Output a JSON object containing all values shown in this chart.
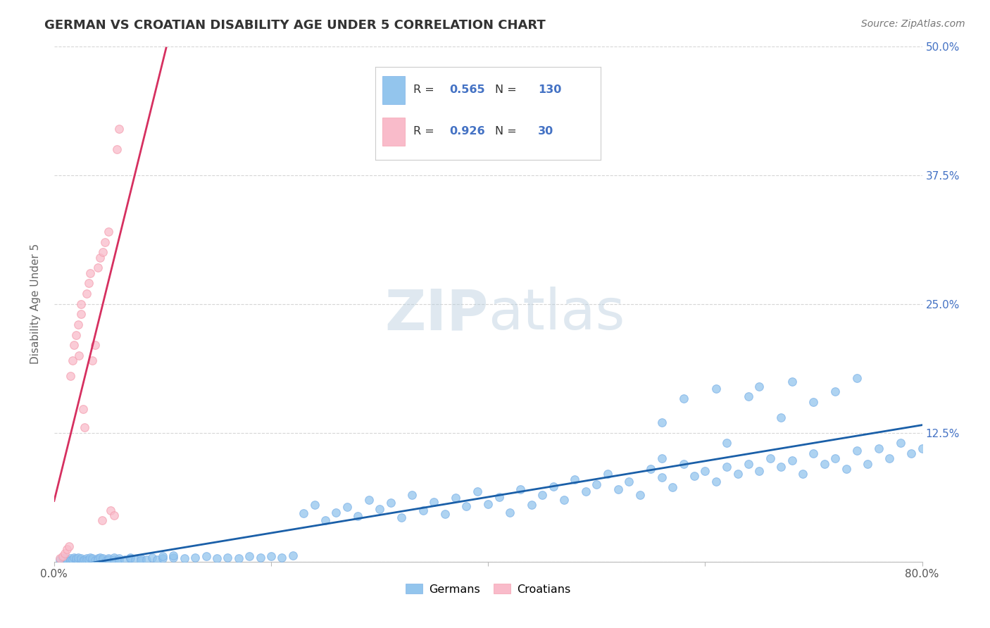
{
  "title": "GERMAN VS CROATIAN DISABILITY AGE UNDER 5 CORRELATION CHART",
  "source": "Source: ZipAtlas.com",
  "ylabel": "Disability Age Under 5",
  "xlim": [
    0.0,
    0.8
  ],
  "ylim": [
    0.0,
    0.5
  ],
  "xticks": [
    0.0,
    0.2,
    0.4,
    0.6,
    0.8
  ],
  "xtick_labels": [
    "0.0%",
    "",
    "",
    "",
    "80.0%"
  ],
  "yticks": [
    0.0,
    0.125,
    0.25,
    0.375,
    0.5
  ],
  "ytick_labels": [
    "",
    "12.5%",
    "25.0%",
    "37.5%",
    "50.0%"
  ],
  "german_color": "#93C5ED",
  "german_edge_color": "#7EB3E8",
  "croatian_color": "#F9BBCA",
  "croatian_edge_color": "#F4A0B0",
  "german_line_color": "#1A5FA8",
  "croatian_line_color": "#D63060",
  "watermark_zip": "ZIP",
  "watermark_atlas": "atlas",
  "legend_r_german": "0.565",
  "legend_n_german": "130",
  "legend_r_croatian": "0.926",
  "legend_n_croatian": "30",
  "legend_value_color": "#4472C4",
  "background_color": "#FFFFFF",
  "grid_color": "#CCCCCC",
  "title_color": "#333333",
  "axis_label_color": "#666666",
  "right_ytick_color": "#4472C4",
  "german_scatter_x": [
    0.005,
    0.008,
    0.01,
    0.01,
    0.012,
    0.015,
    0.015,
    0.017,
    0.018,
    0.02,
    0.02,
    0.022,
    0.022,
    0.025,
    0.025,
    0.027,
    0.028,
    0.03,
    0.03,
    0.032,
    0.033,
    0.035,
    0.035,
    0.038,
    0.04,
    0.04,
    0.042,
    0.045,
    0.045,
    0.048,
    0.05,
    0.05,
    0.055,
    0.055,
    0.06,
    0.06,
    0.065,
    0.07,
    0.07,
    0.075,
    0.08,
    0.08,
    0.085,
    0.09,
    0.095,
    0.1,
    0.1,
    0.11,
    0.11,
    0.12,
    0.13,
    0.14,
    0.15,
    0.16,
    0.17,
    0.18,
    0.19,
    0.2,
    0.21,
    0.22,
    0.23,
    0.24,
    0.25,
    0.26,
    0.27,
    0.28,
    0.29,
    0.3,
    0.31,
    0.32,
    0.33,
    0.34,
    0.35,
    0.36,
    0.37,
    0.38,
    0.39,
    0.4,
    0.41,
    0.42,
    0.43,
    0.44,
    0.45,
    0.46,
    0.47,
    0.48,
    0.49,
    0.5,
    0.51,
    0.52,
    0.53,
    0.54,
    0.55,
    0.56,
    0.57,
    0.58,
    0.59,
    0.6,
    0.61,
    0.62,
    0.63,
    0.64,
    0.65,
    0.66,
    0.67,
    0.68,
    0.69,
    0.7,
    0.71,
    0.72,
    0.73,
    0.74,
    0.75,
    0.76,
    0.77,
    0.78,
    0.79,
    0.8,
    0.56,
    0.62,
    0.67,
    0.56,
    0.64,
    0.7,
    0.72,
    0.65,
    0.58,
    0.61,
    0.68,
    0.74
  ],
  "german_scatter_y": [
    0.002,
    0.003,
    0.001,
    0.004,
    0.002,
    0.003,
    0.001,
    0.002,
    0.004,
    0.002,
    0.003,
    0.001,
    0.004,
    0.002,
    0.003,
    0.001,
    0.002,
    0.003,
    0.001,
    0.002,
    0.004,
    0.002,
    0.003,
    0.001,
    0.003,
    0.002,
    0.004,
    0.002,
    0.003,
    0.001,
    0.003,
    0.002,
    0.004,
    0.002,
    0.003,
    0.001,
    0.002,
    0.003,
    0.004,
    0.002,
    0.003,
    0.001,
    0.002,
    0.004,
    0.002,
    0.003,
    0.005,
    0.004,
    0.006,
    0.003,
    0.004,
    0.005,
    0.003,
    0.004,
    0.003,
    0.005,
    0.004,
    0.005,
    0.004,
    0.006,
    0.047,
    0.055,
    0.04,
    0.048,
    0.053,
    0.044,
    0.06,
    0.051,
    0.057,
    0.043,
    0.065,
    0.05,
    0.058,
    0.046,
    0.062,
    0.054,
    0.068,
    0.056,
    0.063,
    0.048,
    0.07,
    0.055,
    0.065,
    0.073,
    0.06,
    0.08,
    0.068,
    0.075,
    0.085,
    0.07,
    0.078,
    0.065,
    0.09,
    0.082,
    0.072,
    0.095,
    0.083,
    0.088,
    0.078,
    0.092,
    0.085,
    0.095,
    0.088,
    0.1,
    0.092,
    0.098,
    0.085,
    0.105,
    0.095,
    0.1,
    0.09,
    0.108,
    0.095,
    0.11,
    0.1,
    0.115,
    0.105,
    0.11,
    0.1,
    0.115,
    0.14,
    0.135,
    0.16,
    0.155,
    0.165,
    0.17,
    0.158,
    0.168,
    0.175,
    0.178
  ],
  "croatian_scatter_x": [
    0.005,
    0.008,
    0.01,
    0.012,
    0.014,
    0.015,
    0.017,
    0.018,
    0.02,
    0.022,
    0.023,
    0.025,
    0.025,
    0.027,
    0.028,
    0.03,
    0.032,
    0.033,
    0.035,
    0.038,
    0.04,
    0.042,
    0.044,
    0.045,
    0.047,
    0.05,
    0.052,
    0.055,
    0.058,
    0.06
  ],
  "croatian_scatter_y": [
    0.003,
    0.005,
    0.008,
    0.012,
    0.015,
    0.18,
    0.195,
    0.21,
    0.22,
    0.23,
    0.2,
    0.24,
    0.25,
    0.148,
    0.13,
    0.26,
    0.27,
    0.28,
    0.195,
    0.21,
    0.285,
    0.295,
    0.04,
    0.3,
    0.31,
    0.32,
    0.05,
    0.045,
    0.4,
    0.42
  ],
  "croatian_trendline_x0": 0.0,
  "croatian_trendline_x1": 0.125
}
